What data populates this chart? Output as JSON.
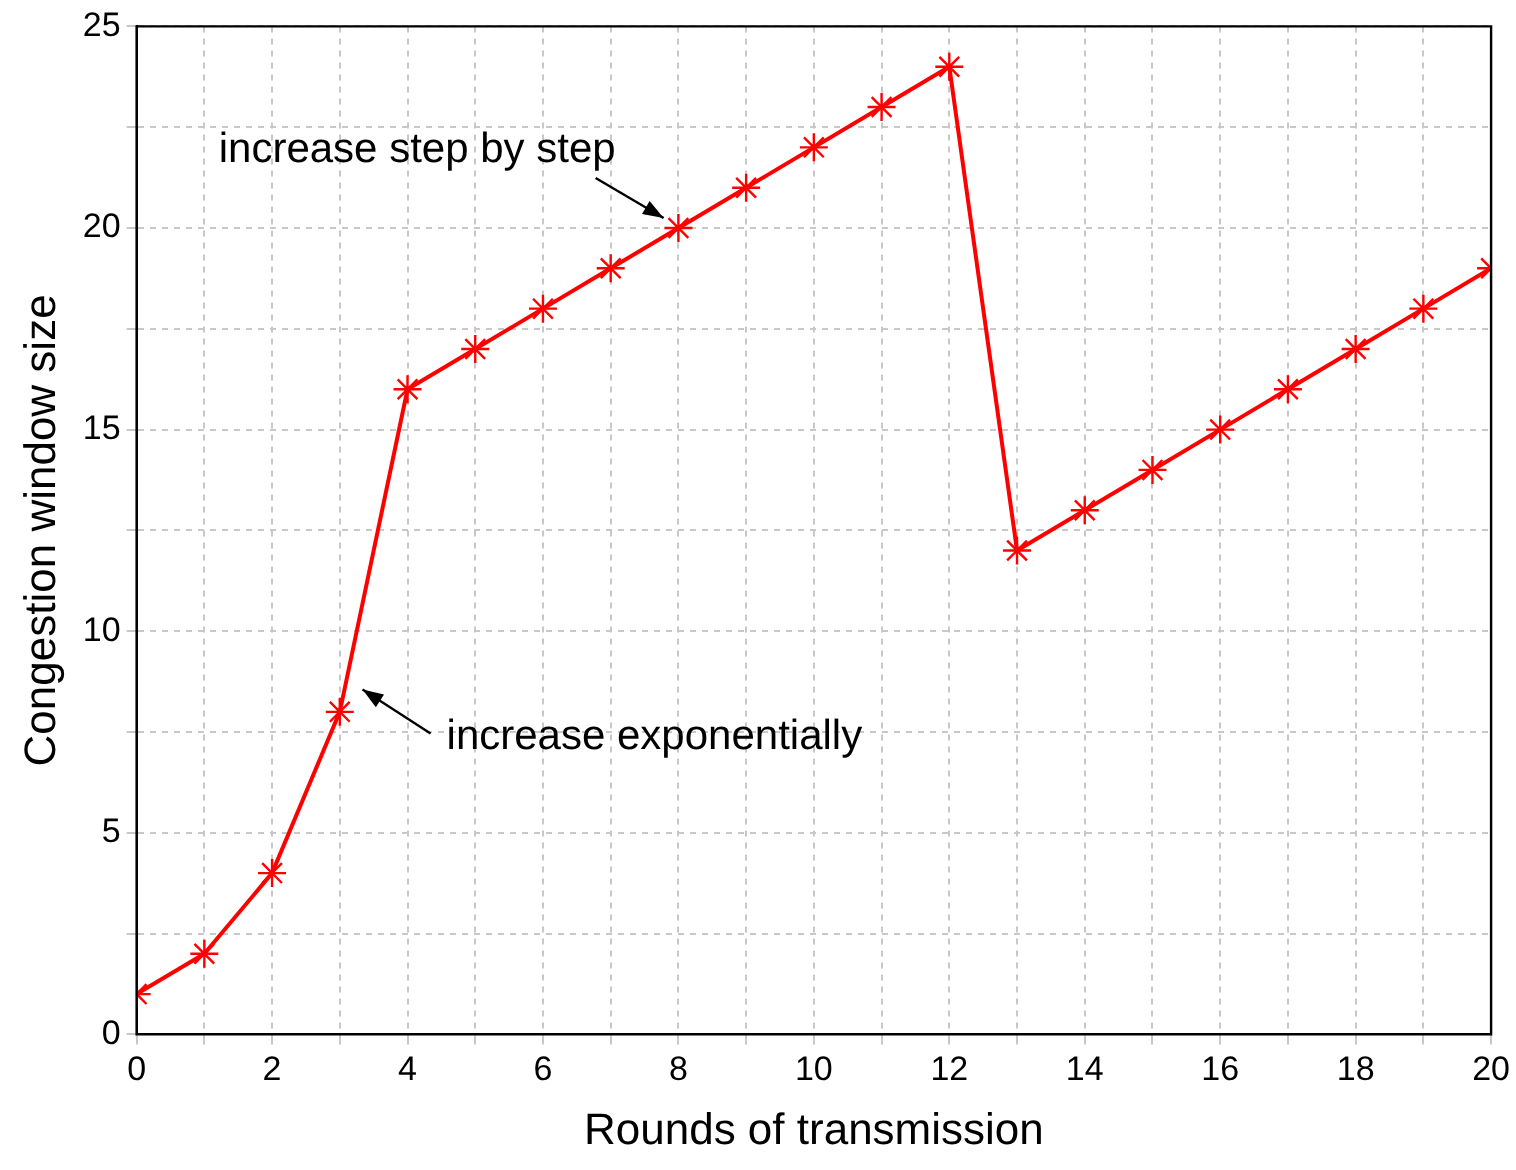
{
  "chart_data": {
    "type": "line",
    "xlabel": "Rounds of transmission",
    "ylabel": "Congestion window size",
    "x": [
      0,
      1,
      2,
      3,
      4,
      5,
      6,
      7,
      8,
      9,
      10,
      11,
      12,
      13,
      14,
      15,
      16,
      17,
      18,
      19,
      20
    ],
    "series": [
      {
        "color": "#ff0000",
        "values": [
          1,
          2,
          4,
          8,
          16,
          17,
          18,
          19,
          20,
          21,
          22,
          23,
          24,
          12,
          13,
          14,
          15,
          16,
          17,
          18,
          19
        ]
      }
    ],
    "xlim": [
      0,
      20
    ],
    "xticks": [
      0,
      {
        "value": 1,
        "label": null
      },
      2,
      {
        "value": 3,
        "label": null
      },
      4,
      {
        "value": 5,
        "label": null
      },
      6,
      {
        "value": 7,
        "label": null
      },
      8,
      {
        "value": 9,
        "label": null
      },
      10,
      {
        "value": 11,
        "label": null
      },
      12,
      {
        "value": 13,
        "label": null
      },
      14,
      {
        "value": 15,
        "label": null
      },
      16,
      {
        "value": 17,
        "label": null
      },
      18,
      {
        "value": 19,
        "label": null
      },
      20
    ],
    "ylim": [
      0,
      25
    ],
    "yticks": [
      0,
      {
        "value": 2.5,
        "label": null
      },
      5,
      {
        "value": 7.5,
        "label": null
      },
      10,
      {
        "value": 12.5,
        "label": null
      },
      15,
      {
        "value": 17.5,
        "label": null
      },
      20,
      {
        "value": 22.5,
        "label": null
      },
      25
    ],
    "grid": true,
    "legend": false,
    "marker": "cross",
    "line_style": "solid",
    "annotations": [
      {
        "text": "increase step by step",
        "x": 7.9,
        "y": 19.9
      },
      {
        "text": "increase exponentially",
        "x": 3.1,
        "y": 8.8
      }
    ]
  }
}
